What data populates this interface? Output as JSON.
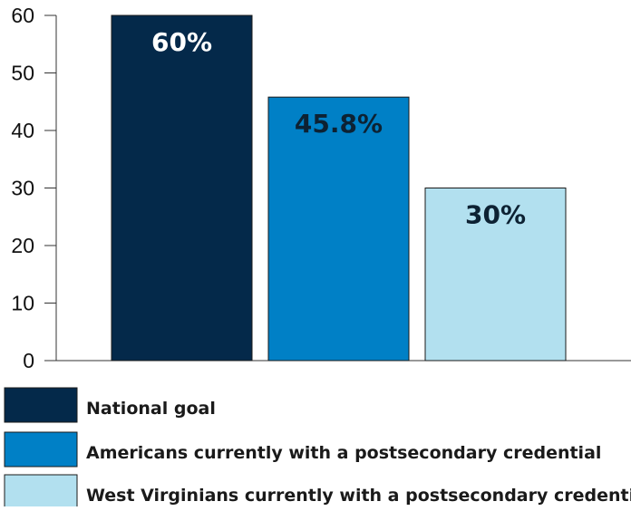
{
  "chart_data": {
    "type": "bar",
    "title": "",
    "xlabel": "",
    "ylabel": "",
    "ylim": [
      0,
      60
    ],
    "yticks": [
      0,
      10,
      20,
      30,
      40,
      50,
      60
    ],
    "grid": false,
    "legend_position": "bottom-left",
    "categories": [
      "National goal",
      "Americans currently with a postsecondary credential",
      "West Virginians currently with a postsecondary credential"
    ],
    "values": [
      60,
      45.8,
      30
    ],
    "data_labels": [
      "60%",
      "45.8%",
      "30%"
    ],
    "colors": [
      "#04294a",
      "#0080c6",
      "#b2e0ef"
    ],
    "label_colors": [
      "#ffffff",
      "#0d2233",
      "#0d2233"
    ]
  }
}
